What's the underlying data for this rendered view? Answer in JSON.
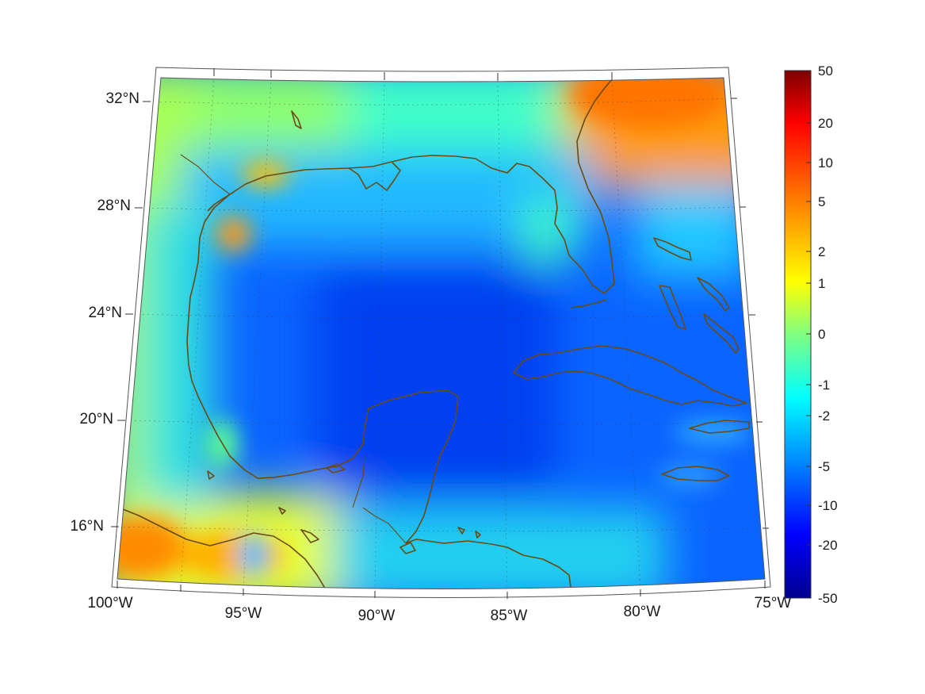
{
  "map": {
    "lon_labels": [
      "100°W",
      "95°W",
      "90°W",
      "85°W",
      "80°W",
      "75°W"
    ],
    "lat_labels": [
      "32°N",
      "28°N",
      "24°N",
      "20°N",
      "16°N"
    ]
  },
  "colorbar": {
    "tick_labels": [
      "50",
      "20",
      "10",
      "5",
      "2",
      "1",
      "0",
      "-1",
      "-2",
      "-5",
      "-10",
      "-20",
      "-50"
    ],
    "colormap": "jet",
    "colors": [
      "#7f0000",
      "#ff0000",
      "#ff8000",
      "#ffff00",
      "#80ff80",
      "#00ffff",
      "#0080ff",
      "#0000ff",
      "#00008f"
    ]
  },
  "colors": {
    "coastline": "#6b4a12",
    "background": "#ffffff"
  }
}
